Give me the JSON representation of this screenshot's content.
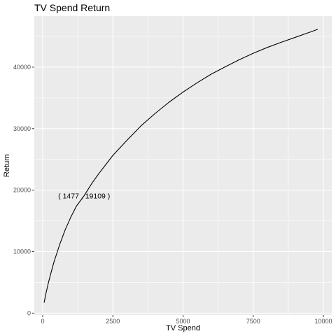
{
  "chart_data": {
    "type": "line",
    "title": "TV Spend Return",
    "xlabel": "TV Spend",
    "ylabel": "Return",
    "xlim": [
      -300,
      10300
    ],
    "ylim": [
      -300,
      48300
    ],
    "x_ticks": [
      0,
      2500,
      5000,
      7500,
      10000
    ],
    "x_tick_labels": [
      "0",
      "2500",
      "5000",
      "7500",
      "10000"
    ],
    "y_ticks": [
      0,
      10000,
      20000,
      30000,
      40000
    ],
    "y_tick_labels": [
      "0",
      "10000",
      "20000",
      "30000",
      "40000"
    ],
    "grid": true,
    "series": [
      {
        "color": "#000000",
        "x": [
          50,
          100,
          200,
          300,
          400,
          500,
          600,
          800,
          1000,
          1200,
          1477,
          1750,
          2000,
          2500,
          3000,
          3500,
          4000,
          4500,
          5000,
          5500,
          6000,
          6500,
          7000,
          7500,
          8000,
          8500,
          9000,
          9500,
          9800
        ],
        "y": [
          1700,
          2900,
          4900,
          6650,
          8300,
          9700,
          11100,
          13550,
          15600,
          17400,
          19109,
          21100,
          22700,
          25650,
          28100,
          30450,
          32450,
          34300,
          35950,
          37450,
          38850,
          40050,
          41200,
          42250,
          43200,
          44050,
          44850,
          45650,
          46150
        ]
      }
    ],
    "annotations": [
      {
        "text": "( 1477 , 19109 )",
        "x": 1477,
        "y": 19109
      }
    ]
  }
}
